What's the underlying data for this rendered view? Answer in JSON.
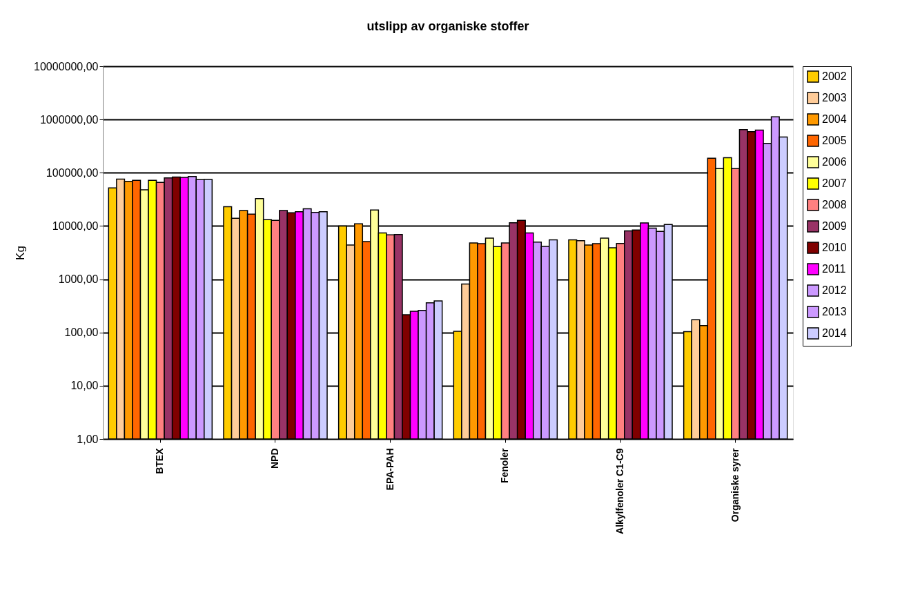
{
  "chart_data": {
    "type": "bar",
    "title": "utslipp av organiske stoffer",
    "ylabel": "Kg",
    "categories": [
      "BTEX",
      "NPD",
      "EPA-PAH",
      "Fenoler",
      "Alkylfenoler C1-C9",
      "Organiske syrer"
    ],
    "series": [
      {
        "name": "2002",
        "color": "#ffcc00",
        "values": [
          52000,
          23000,
          10000,
          105,
          5500,
          104
        ]
      },
      {
        "name": "2003",
        "color": "#ffcc99",
        "values": [
          76000,
          14000,
          4400,
          815,
          5300,
          174
        ]
      },
      {
        "name": "2004",
        "color": "#ff9900",
        "values": [
          69000,
          19500,
          11000,
          4800,
          4400,
          135
        ]
      },
      {
        "name": "2005",
        "color": "#ff6600",
        "values": [
          72000,
          16700,
          5100,
          4650,
          4650,
          187000
        ]
      },
      {
        "name": "2006",
        "color": "#ffff99",
        "values": [
          48000,
          32600,
          20000,
          5900,
          5900,
          120000
        ]
      },
      {
        "name": "2007",
        "color": "#ffff00",
        "values": [
          72000,
          13200,
          7400,
          4100,
          3900,
          192000
        ]
      },
      {
        "name": "2008",
        "color": "#ff8080",
        "values": [
          66000,
          12800,
          6800,
          4800,
          4700,
          120000
        ]
      },
      {
        "name": "2009",
        "color": "#993366",
        "values": [
          80000,
          19500,
          6900,
          11500,
          8100,
          645000
        ]
      },
      {
        "name": "2010",
        "color": "#800000",
        "values": [
          83000,
          17700,
          215,
          12800,
          8400,
          590000
        ]
      },
      {
        "name": "2011",
        "color": "#ff00ff",
        "values": [
          82000,
          18600,
          250,
          7400,
          11400,
          630000
        ]
      },
      {
        "name": "2012",
        "color": "#cc99ff",
        "values": [
          85000,
          21000,
          260,
          5000,
          9100,
          355000
        ]
      },
      {
        "name": "2013",
        "color": "#cc99ff",
        "values": [
          74000,
          18000,
          360,
          4150,
          7900,
          1120000
        ]
      },
      {
        "name": "2014",
        "color": "#ccccff",
        "values": [
          75000,
          18600,
          390,
          5500,
          10700,
          470000
        ]
      }
    ],
    "log": "y",
    "ylim": [
      1,
      10000000
    ],
    "yticks": [
      {
        "value": 1,
        "label": "1,00"
      },
      {
        "value": 10,
        "label": "10,00"
      },
      {
        "value": 100,
        "label": "100,00"
      },
      {
        "value": 1000,
        "label": "1000,00"
      },
      {
        "value": 10000,
        "label": "10000,00"
      },
      {
        "value": 100000,
        "label": "100000,00"
      },
      {
        "value": 1000000,
        "label": "1000000,00"
      },
      {
        "value": 10000000,
        "label": "10000000,00"
      }
    ],
    "grid": "y",
    "legend": "right"
  }
}
